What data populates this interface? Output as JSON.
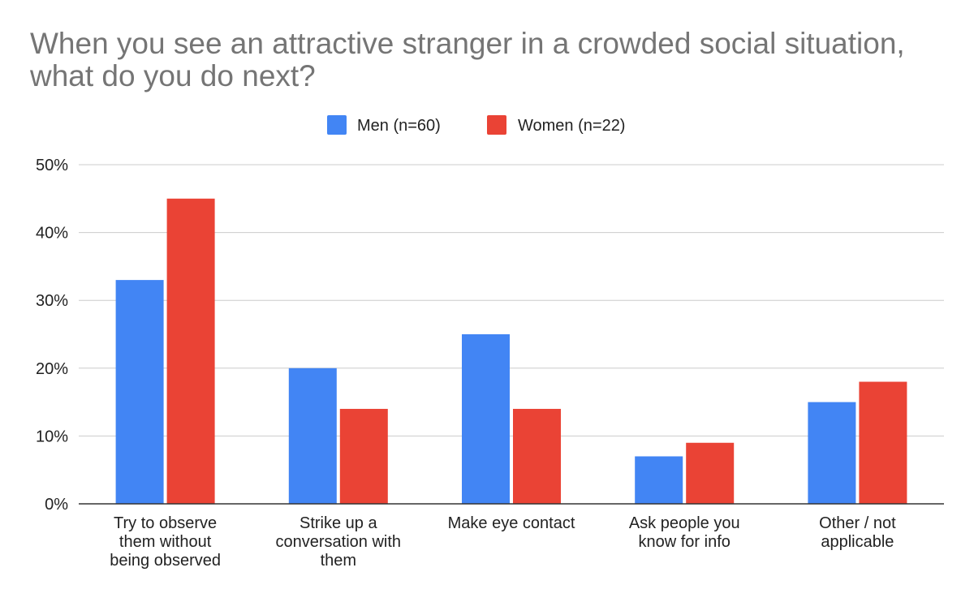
{
  "chart_data": {
    "type": "bar",
    "title": "When you see an attractive stranger in a crowded social situation, what do you do next?",
    "categories": [
      [
        "Try to observe",
        "them without",
        "being observed"
      ],
      [
        "Strike up a",
        "conversation with",
        "them"
      ],
      [
        "Make eye contact"
      ],
      [
        "Ask people you",
        "know for info"
      ],
      [
        "Other / not",
        "applicable"
      ]
    ],
    "series": [
      {
        "name": "Men (n=60)",
        "color": "#4285f4",
        "values": [
          33,
          20,
          25,
          7,
          15
        ]
      },
      {
        "name": "Women (n=22)",
        "color": "#ea4335",
        "values": [
          45,
          14,
          14,
          9,
          18
        ]
      }
    ],
    "y_ticks": [
      "0%",
      "10%",
      "20%",
      "30%",
      "40%",
      "50%"
    ],
    "ylim": [
      0,
      50
    ],
    "grid": true,
    "legend_position": "top-center"
  }
}
